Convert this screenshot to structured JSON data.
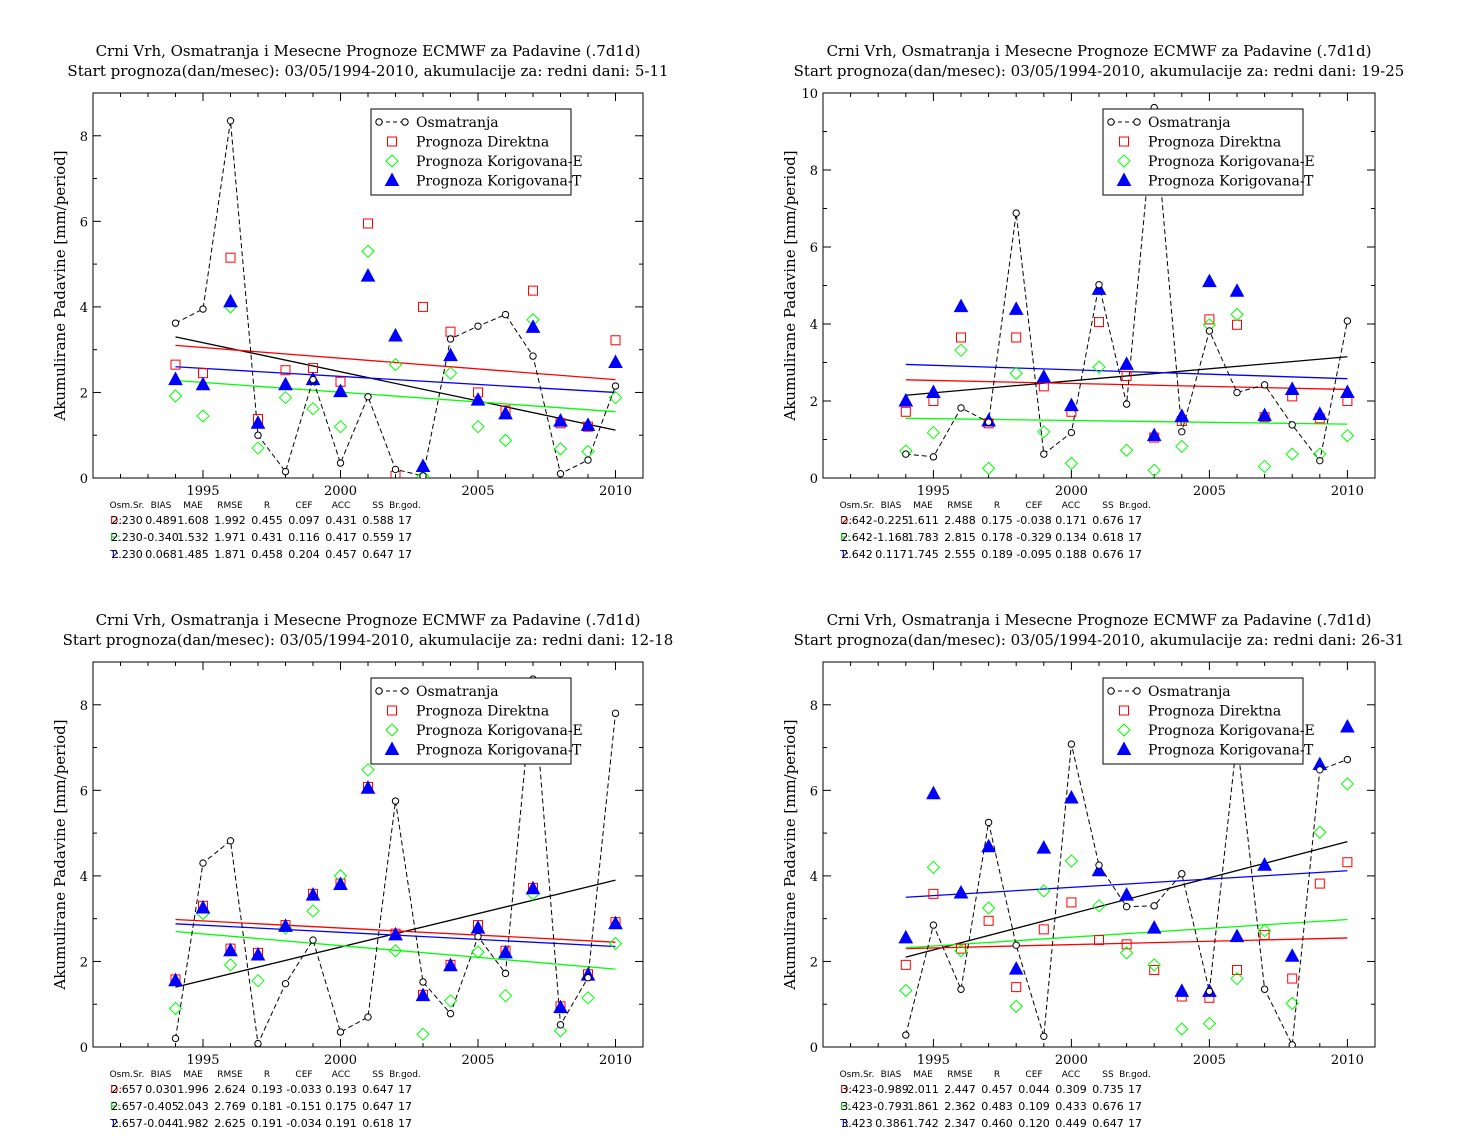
{
  "chart_data": [
    {
      "type": "scatter",
      "title": "Crni Vrh, Osmatranja i Mesecne Prognoze ECMWF za Padavine (.7d1d)",
      "subtitle": "Start prognoza(dan/mesec): 03/05/1994-2010, akumulacije za: redni dani: 5-11",
      "ylabel": "Akumulirane Padavine [mm/period]",
      "xlabel": "",
      "xlim": [
        1991,
        2011
      ],
      "ylim": [
        0,
        9
      ],
      "xticks": [
        1995,
        2000,
        2005,
        2010
      ],
      "yticks": [
        0,
        2,
        4,
        6,
        8
      ],
      "legend_position": "top-right",
      "x": [
        1994,
        1995,
        1996,
        1997,
        1998,
        1999,
        2000,
        2001,
        2002,
        2003,
        2004,
        2005,
        2006,
        2007,
        2008,
        2009,
        2010
      ],
      "series": [
        {
          "name": "Osmatranja",
          "style": "dashed-circle",
          "color": "#000000",
          "values": [
            3.62,
            3.95,
            8.35,
            1.0,
            0.15,
            2.3,
            0.35,
            1.9,
            0.2,
            0.05,
            3.25,
            3.55,
            3.82,
            2.85,
            0.1,
            0.42,
            2.15
          ]
        },
        {
          "name": "Prognoza Direktna",
          "style": "square",
          "color": "#ff0000",
          "values": [
            2.65,
            2.45,
            5.15,
            1.38,
            2.52,
            2.57,
            2.25,
            5.95,
            0.05,
            4.0,
            3.42,
            2.0,
            1.58,
            4.38,
            1.28,
            1.2,
            3.22
          ]
        },
        {
          "name": "Prognoza Korigovana-E",
          "style": "diamond",
          "color": "#00ff00",
          "values": [
            1.92,
            1.45,
            4.0,
            0.7,
            1.88,
            1.62,
            1.2,
            5.3,
            2.65,
            0.03,
            2.45,
            1.2,
            0.88,
            3.7,
            0.68,
            0.62,
            1.88
          ]
        },
        {
          "name": "Prognoza Korigovana-T",
          "style": "triangle",
          "color": "#0000ff",
          "values": [
            2.3,
            2.18,
            4.12,
            1.28,
            2.18,
            2.3,
            2.02,
            4.72,
            3.32,
            0.27,
            2.86,
            1.82,
            1.5,
            3.52,
            1.33,
            1.23,
            2.7
          ]
        }
      ],
      "trends": [
        {
          "color": "#000000",
          "y_start": 3.3,
          "y_end": 1.12
        },
        {
          "color": "#ff0000",
          "y_start": 3.1,
          "y_end": 2.3
        },
        {
          "color": "#0000ff",
          "y_start": 2.6,
          "y_end": 2.0
        },
        {
          "color": "#00ff00",
          "y_start": 2.28,
          "y_end": 1.55
        }
      ],
      "stats": {
        "headers": [
          "Osm.Sr.",
          "BIAS",
          "MAE",
          "RMSE",
          "R",
          "CEF",
          "ACC",
          "SS",
          "Br.god."
        ],
        "rows": [
          {
            "label": "D:",
            "color": "#ff0000",
            "values": [
              "2.230",
              "0.489",
              "1.608",
              "1.992",
              "0.455",
              "0.097",
              "0.431",
              "0.588",
              "17"
            ]
          },
          {
            "label": "E:",
            "color": "#00cc00",
            "values": [
              "2.230",
              "-0.340",
              "1.532",
              "1.971",
              "0.431",
              "0.116",
              "0.417",
              "0.559",
              "17"
            ]
          },
          {
            "label": "T:",
            "color": "#0000ff",
            "values": [
              "2.230",
              "0.068",
              "1.485",
              "1.871",
              "0.458",
              "0.204",
              "0.457",
              "0.647",
              "17"
            ]
          }
        ]
      }
    },
    {
      "type": "scatter",
      "title": "Crni Vrh, Osmatranja i Mesecne Prognoze ECMWF za Padavine (.7d1d)",
      "subtitle": "Start prognoza(dan/mesec): 03/05/1994-2010, akumulacije za: redni dani: 19-25",
      "ylabel": "Akumulirane Padavine [mm/period]",
      "xlabel": "",
      "xlim": [
        1991,
        2011
      ],
      "ylim": [
        0,
        10
      ],
      "xticks": [
        1995,
        2000,
        2005,
        2010
      ],
      "yticks": [
        0,
        2,
        4,
        6,
        8,
        10
      ],
      "legend_position": "top-right",
      "x": [
        1994,
        1995,
        1996,
        1997,
        1998,
        1999,
        2000,
        2001,
        2002,
        2003,
        2004,
        2005,
        2006,
        2007,
        2008,
        2009,
        2010
      ],
      "series": [
        {
          "name": "Osmatranja",
          "style": "dashed-circle",
          "color": "#000000",
          "values": [
            0.62,
            0.55,
            1.82,
            1.45,
            6.88,
            0.62,
            1.18,
            5.02,
            1.92,
            9.62,
            1.2,
            3.82,
            2.22,
            2.42,
            1.38,
            0.45,
            4.08
          ]
        },
        {
          "name": "Prognoza Direktna",
          "style": "square",
          "color": "#ff0000",
          "values": [
            1.72,
            2.0,
            3.65,
            1.42,
            3.65,
            2.38,
            1.72,
            4.05,
            2.65,
            1.05,
            1.48,
            4.12,
            3.98,
            1.58,
            2.12,
            1.55,
            2.0
          ]
        },
        {
          "name": "Prognoza Korigovana-E",
          "style": "diamond",
          "color": "#00ff00",
          "values": [
            0.7,
            1.18,
            3.32,
            0.25,
            2.72,
            1.2,
            0.38,
            2.88,
            0.72,
            0.2,
            0.82,
            3.98,
            4.25,
            0.3,
            0.62,
            0.62,
            1.1
          ]
        },
        {
          "name": "Prognoza Korigovana-T",
          "style": "triangle",
          "color": "#0000ff",
          "values": [
            2.0,
            2.22,
            4.45,
            1.48,
            4.38,
            2.62,
            1.88,
            4.9,
            2.95,
            1.1,
            1.6,
            5.1,
            4.85,
            1.62,
            2.3,
            1.65,
            2.22
          ]
        }
      ],
      "trends": [
        {
          "color": "#000000",
          "y_start": 2.15,
          "y_end": 3.15
        },
        {
          "color": "#ff0000",
          "y_start": 2.55,
          "y_end": 2.3
        },
        {
          "color": "#0000ff",
          "y_start": 2.95,
          "y_end": 2.58
        },
        {
          "color": "#00ff00",
          "y_start": 1.55,
          "y_end": 1.4
        }
      ],
      "stats": {
        "headers": [
          "Osm.Sr.",
          "BIAS",
          "MAE",
          "RMSE",
          "R",
          "CEF",
          "ACC",
          "SS",
          "Br.god."
        ],
        "rows": [
          {
            "label": "D:",
            "color": "#ff0000",
            "values": [
              "2.642",
              "-0.225",
              "1.611",
              "2.488",
              "0.175",
              "-0.038",
              "0.171",
              "0.676",
              "17"
            ]
          },
          {
            "label": "E:",
            "color": "#00cc00",
            "values": [
              "2.642",
              "-1.168",
              "1.783",
              "2.815",
              "0.178",
              "-0.329",
              "0.134",
              "0.618",
              "17"
            ]
          },
          {
            "label": "T:",
            "color": "#0000ff",
            "values": [
              "2.642",
              "0.117",
              "1.745",
              "2.555",
              "0.189",
              "-0.095",
              "0.188",
              "0.676",
              "17"
            ]
          }
        ]
      }
    },
    {
      "type": "scatter",
      "title": "Crni Vrh, Osmatranja i Mesecne Prognoze ECMWF za Padavine (.7d1d)",
      "subtitle": "Start prognoza(dan/mesec): 03/05/1994-2010, akumulacije za: redni dani: 12-18",
      "ylabel": "Akumulirane Padavine [mm/period]",
      "xlabel": "",
      "xlim": [
        1991,
        2011
      ],
      "ylim": [
        0,
        9
      ],
      "xticks": [
        1995,
        2000,
        2005,
        2010
      ],
      "yticks": [
        0,
        2,
        4,
        6,
        8
      ],
      "legend_position": "top-right",
      "x": [
        1994,
        1995,
        1996,
        1997,
        1998,
        1999,
        2000,
        2001,
        2002,
        2003,
        2004,
        2005,
        2006,
        2007,
        2008,
        2009,
        2010
      ],
      "series": [
        {
          "name": "Osmatranja",
          "style": "dashed-circle",
          "color": "#000000",
          "values": [
            0.2,
            4.3,
            4.82,
            0.08,
            1.48,
            2.5,
            0.35,
            0.7,
            5.75,
            1.52,
            0.78,
            2.58,
            1.72,
            8.6,
            0.52,
            1.62,
            7.8
          ]
        },
        {
          "name": "Prognoza Direktna",
          "style": "square",
          "color": "#ff0000",
          "values": [
            1.58,
            3.3,
            2.3,
            2.2,
            2.85,
            3.58,
            3.82,
            6.08,
            2.65,
            1.22,
            1.92,
            2.85,
            2.25,
            3.72,
            0.95,
            1.7,
            2.92
          ]
        },
        {
          "name": "Prognoza Korigovana-E",
          "style": "diamond",
          "color": "#00ff00",
          "values": [
            0.9,
            3.12,
            1.92,
            1.55,
            2.78,
            3.18,
            4.0,
            6.48,
            2.25,
            0.3,
            1.08,
            2.22,
            1.2,
            3.58,
            0.38,
            1.15,
            2.42
          ]
        },
        {
          "name": "Prognoza Korigovana-T",
          "style": "triangle",
          "color": "#0000ff",
          "values": [
            1.55,
            3.25,
            2.25,
            2.15,
            2.82,
            3.55,
            3.8,
            6.05,
            2.62,
            1.2,
            1.9,
            2.78,
            2.2,
            3.7,
            0.92,
            1.68,
            2.88
          ]
        }
      ],
      "trends": [
        {
          "color": "#000000",
          "y_start": 1.4,
          "y_end": 3.9
        },
        {
          "color": "#ff0000",
          "y_start": 2.98,
          "y_end": 2.45
        },
        {
          "color": "#0000ff",
          "y_start": 2.88,
          "y_end": 2.35
        },
        {
          "color": "#00ff00",
          "y_start": 2.7,
          "y_end": 1.82
        }
      ],
      "stats": {
        "headers": [
          "Osm.Sr.",
          "BIAS",
          "MAE",
          "RMSE",
          "R",
          "CEF",
          "ACC",
          "SS",
          "Br.god."
        ],
        "rows": [
          {
            "label": "D:",
            "color": "#ff0000",
            "values": [
              "2.657",
              "0.030",
              "1.996",
              "2.624",
              "0.193",
              "-0.033",
              "0.193",
              "0.647",
              "17"
            ]
          },
          {
            "label": "E:",
            "color": "#00cc00",
            "values": [
              "2.657",
              "-0.405",
              "2.043",
              "2.769",
              "0.181",
              "-0.151",
              "0.175",
              "0.647",
              "17"
            ]
          },
          {
            "label": "T:",
            "color": "#0000ff",
            "values": [
              "2.657",
              "-0.044",
              "1.982",
              "2.625",
              "0.191",
              "-0.034",
              "0.191",
              "0.618",
              "17"
            ]
          }
        ]
      }
    },
    {
      "type": "scatter",
      "title": "Crni Vrh, Osmatranja i Mesecne Prognoze ECMWF za Padavine (.7d1d)",
      "subtitle": "Start prognoza(dan/mesec): 03/05/1994-2010, akumulacije za: redni dani: 26-31",
      "ylabel": "Akumulirane Padavine [mm/period]",
      "xlabel": "",
      "xlim": [
        1991,
        2011
      ],
      "ylim": [
        0,
        9
      ],
      "xticks": [
        1995,
        2000,
        2005,
        2010
      ],
      "yticks": [
        0,
        2,
        4,
        6,
        8
      ],
      "legend_position": "top-right",
      "x": [
        1994,
        1995,
        1996,
        1997,
        1998,
        1999,
        2000,
        2001,
        2002,
        2003,
        2004,
        2005,
        2006,
        2007,
        2008,
        2009,
        2010
      ],
      "series": [
        {
          "name": "Osmatranja",
          "style": "dashed-circle",
          "color": "#000000",
          "values": [
            0.28,
            2.85,
            1.35,
            5.25,
            2.38,
            0.25,
            7.08,
            4.25,
            3.28,
            3.3,
            4.05,
            1.3,
            7.2,
            1.35,
            0.05,
            6.48,
            6.72
          ]
        },
        {
          "name": "Prognoza Direktna",
          "style": "square",
          "color": "#ff0000",
          "values": [
            1.92,
            3.58,
            2.3,
            2.95,
            1.4,
            2.75,
            3.38,
            2.5,
            2.4,
            1.8,
            1.18,
            1.15,
            1.8,
            2.62,
            1.6,
            3.82,
            4.32
          ]
        },
        {
          "name": "Prognoza Korigovana-E",
          "style": "diamond",
          "color": "#00ff00",
          "values": [
            1.32,
            4.2,
            2.25,
            3.25,
            0.95,
            3.65,
            4.35,
            3.3,
            2.2,
            1.92,
            0.42,
            0.55,
            1.6,
            2.72,
            1.02,
            5.02,
            6.15
          ]
        },
        {
          "name": "Prognoza Korigovana-T",
          "style": "triangle",
          "color": "#0000ff",
          "values": [
            2.55,
            5.92,
            3.6,
            4.68,
            1.82,
            4.65,
            5.82,
            4.12,
            3.55,
            2.78,
            1.3,
            1.3,
            2.58,
            4.25,
            2.12,
            6.6,
            7.48
          ]
        }
      ],
      "trends": [
        {
          "color": "#000000",
          "y_start": 2.1,
          "y_end": 4.8
        },
        {
          "color": "#ff0000",
          "y_start": 2.3,
          "y_end": 2.55
        },
        {
          "color": "#0000ff",
          "y_start": 3.5,
          "y_end": 4.12
        },
        {
          "color": "#00ff00",
          "y_start": 2.32,
          "y_end": 2.98
        }
      ],
      "stats": {
        "headers": [
          "Osm.Sr.",
          "BIAS",
          "MAE",
          "RMSE",
          "R",
          "CEF",
          "ACC",
          "SS",
          "Br.god."
        ],
        "rows": [
          {
            "label": "D:",
            "color": "#ff0000",
            "values": [
              "3.423",
              "-0.989",
              "2.011",
              "2.447",
              "0.457",
              "0.044",
              "0.309",
              "0.735",
              "17"
            ]
          },
          {
            "label": "E:",
            "color": "#00cc00",
            "values": [
              "3.423",
              "-0.793",
              "1.861",
              "2.362",
              "0.483",
              "0.109",
              "0.433",
              "0.676",
              "17"
            ]
          },
          {
            "label": "T:",
            "color": "#0000ff",
            "values": [
              "3.423",
              "0.386",
              "1.742",
              "2.347",
              "0.460",
              "0.120",
              "0.449",
              "0.647",
              "17"
            ]
          }
        ]
      }
    }
  ]
}
